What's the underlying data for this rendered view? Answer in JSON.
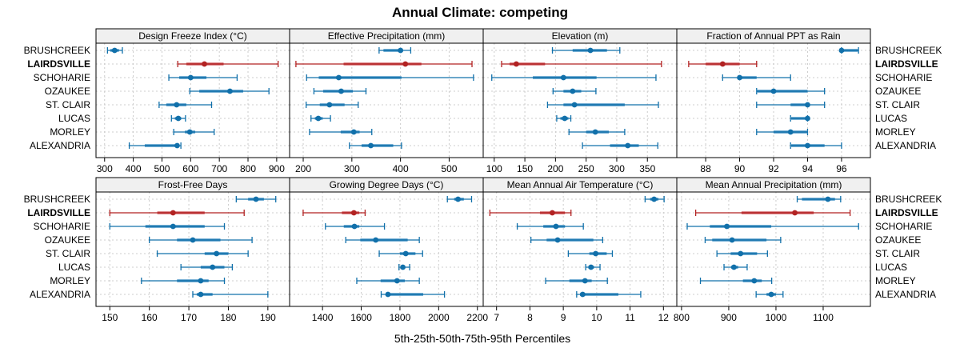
{
  "chart_data": {
    "type": "dot-percentile",
    "title": "Annual Climate: competing",
    "xlabel": "5th-25th-50th-75th-95th Percentiles",
    "percentile_keys": [
      "p5",
      "p25",
      "p50",
      "p75",
      "p95"
    ],
    "sites": [
      "BRUSHCREEK",
      "LAIRDSVILLE",
      "SCHOHARIE",
      "OZAUKEE",
      "ST. CLAIR",
      "LUCAS",
      "MORLEY",
      "ALEXANDRIA"
    ],
    "highlight_site": "LAIRDSVILLE",
    "colors": {
      "default": "#1170aa",
      "highlight": "#b22222",
      "iqr_default": "#5fa2ce",
      "iqr_highlight": "#d9787a"
    },
    "grid": true,
    "panels": [
      {
        "title": "Design Freeze Index (°C)",
        "xlim": [
          270,
          945
        ],
        "ticks": [
          300,
          400,
          500,
          600,
          700,
          800,
          900
        ],
        "values": [
          [
            310,
            320,
            335,
            350,
            362
          ],
          [
            555,
            585,
            648,
            715,
            905
          ],
          [
            524,
            560,
            600,
            655,
            762
          ],
          [
            597,
            630,
            737,
            783,
            873
          ],
          [
            490,
            515,
            551,
            585,
            673
          ],
          [
            533,
            545,
            557,
            567,
            582
          ],
          [
            541,
            580,
            597,
            616,
            682
          ],
          [
            386,
            440,
            553,
            560,
            566
          ]
        ]
      },
      {
        "title": "Effective Precipitation (mm)",
        "xlim": [
          172,
          570
        ],
        "ticks": [
          200,
          300,
          400,
          500
        ],
        "values": [
          [
            356,
            365,
            400,
            405,
            421
          ],
          [
            185,
            283,
            410,
            443,
            547
          ],
          [
            207,
            232,
            273,
            402,
            550
          ],
          [
            222,
            241,
            278,
            302,
            329
          ],
          [
            206,
            234,
            254,
            285,
            313
          ],
          [
            216,
            224,
            231,
            240,
            256
          ],
          [
            213,
            277,
            304,
            316,
            341
          ],
          [
            295,
            320,
            339,
            385,
            402
          ]
        ]
      },
      {
        "title": "Elevation (m)",
        "xlim": [
          82,
          398
        ],
        "ticks": [
          100,
          150,
          200,
          250,
          300,
          350
        ],
        "values": [
          [
            195,
            228,
            257,
            284,
            305
          ],
          [
            112,
            125,
            136,
            183,
            373
          ],
          [
            96,
            163,
            213,
            267,
            364
          ],
          [
            196,
            213,
            228,
            242,
            266
          ],
          [
            187,
            213,
            231,
            313,
            368
          ],
          [
            202,
            208,
            215,
            221,
            225
          ],
          [
            222,
            250,
            265,
            287,
            313
          ],
          [
            244,
            289,
            318,
            336,
            367
          ]
        ]
      },
      {
        "title": "Fraction of Annual PPT as Rain",
        "xlim": [
          86.3,
          97.7
        ],
        "ticks": [
          88,
          90,
          92,
          94,
          96
        ],
        "values": [
          [
            96,
            96,
            96,
            97,
            97
          ],
          [
            87,
            88,
            89,
            90,
            91
          ],
          [
            89,
            90,
            90,
            91,
            93
          ],
          [
            91,
            91,
            92,
            94,
            95
          ],
          [
            91,
            93,
            94,
            94,
            95
          ],
          [
            93,
            93,
            94,
            94,
            94
          ],
          [
            91,
            92,
            93,
            94,
            94
          ],
          [
            93,
            93,
            94,
            95,
            96
          ]
        ]
      },
      {
        "title": "Frost-Free Days",
        "xlim": [
          146.5,
          195.5
        ],
        "ticks": [
          150,
          160,
          170,
          180,
          190
        ],
        "values": [
          [
            182,
            185,
            187,
            189,
            192
          ],
          [
            150,
            162,
            166,
            174,
            184
          ],
          [
            150,
            159,
            166,
            174,
            179
          ],
          [
            160,
            167,
            171,
            178,
            186
          ],
          [
            162,
            174,
            177,
            180,
            185
          ],
          [
            168,
            173,
            176,
            179,
            181
          ],
          [
            158,
            167,
            173,
            175,
            179
          ],
          [
            171,
            172,
            173,
            176,
            190
          ]
        ]
      },
      {
        "title": "Growing Degree Days (°C)",
        "xlim": [
          1230,
          2230
        ],
        "ticks": [
          1400,
          1600,
          1800,
          2000,
          2200
        ],
        "values": [
          [
            2045,
            2080,
            2100,
            2130,
            2170
          ],
          [
            1300,
            1500,
            1562,
            1590,
            1620
          ],
          [
            1415,
            1510,
            1565,
            1590,
            1720
          ],
          [
            1520,
            1595,
            1675,
            1840,
            1900
          ],
          [
            1693,
            1800,
            1830,
            1880,
            1917
          ],
          [
            1795,
            1808,
            1815,
            1825,
            1850
          ],
          [
            1577,
            1700,
            1785,
            1825,
            1900
          ],
          [
            1703,
            1730,
            1738,
            1920,
            2030
          ]
        ]
      },
      {
        "title": "Mean Annual Air Temperature (°C)",
        "xlim": [
          6.6,
          12.4
        ],
        "ticks": [
          7,
          8,
          9,
          10,
          11,
          12
        ],
        "values": [
          [
            11.45,
            11.6,
            11.72,
            11.85,
            12.02
          ],
          [
            6.8,
            8.3,
            8.67,
            9.05,
            9.23
          ],
          [
            7.62,
            8.4,
            8.78,
            9.05,
            9.6
          ],
          [
            8.03,
            8.5,
            8.83,
            9.9,
            10.18
          ],
          [
            9.15,
            9.78,
            9.97,
            10.3,
            10.47
          ],
          [
            9.67,
            9.75,
            9.83,
            9.92,
            10.1
          ],
          [
            8.47,
            9.18,
            9.65,
            9.85,
            10.32
          ],
          [
            9.4,
            9.5,
            9.58,
            10.65,
            11.32
          ]
        ]
      },
      {
        "title": "Mean Annual Precipitation (mm)",
        "xlim": [
          790,
          1200
        ],
        "ticks": [
          800,
          900,
          1000,
          1100
        ],
        "values": [
          [
            1045,
            1055,
            1110,
            1125,
            1137
          ],
          [
            830,
            927,
            1040,
            1080,
            1157
          ],
          [
            812,
            860,
            896,
            990,
            1175
          ],
          [
            850,
            865,
            907,
            980,
            1010
          ],
          [
            875,
            904,
            925,
            960,
            982
          ],
          [
            890,
            905,
            911,
            920,
            939
          ],
          [
            840,
            930,
            954,
            970,
            991
          ],
          [
            958,
            980,
            990,
            1000,
            1015
          ]
        ]
      }
    ]
  }
}
